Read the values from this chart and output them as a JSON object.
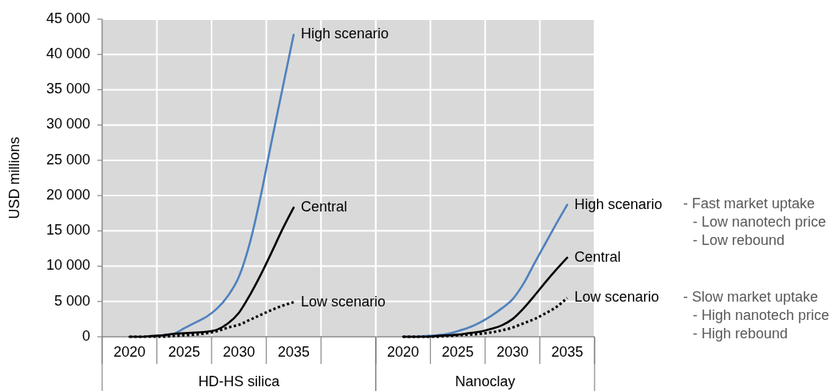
{
  "chart_data": [
    {
      "type": "line",
      "xlabel": "HD-HS silica",
      "ylabel": "USD millions",
      "grid": true,
      "x": [
        2020,
        2021,
        2022,
        2023,
        2024,
        2025,
        2026,
        2027,
        2028,
        2029,
        2030,
        2031,
        2032,
        2033,
        2034,
        2035
      ],
      "xlim": [
        2017.5,
        2042.5
      ],
      "xticks": [
        {
          "value": 2017.5,
          "label": null
        },
        2020,
        {
          "value": 2022.5,
          "label": null
        },
        2025,
        {
          "value": 2027.5,
          "label": null
        },
        2030,
        {
          "value": 2032.5,
          "label": null
        },
        2035,
        {
          "value": 2037.5,
          "label": null
        },
        {
          "value": 2042.5,
          "label": null
        }
      ],
      "ylim": [
        0,
        45000
      ],
      "yticks": [
        0,
        {
          "value": 5000,
          "label": "5 000"
        },
        {
          "value": 10000,
          "label": "10 000"
        },
        {
          "value": 15000,
          "label": "15 000"
        },
        {
          "value": 20000,
          "label": "20 000"
        },
        {
          "value": 25000,
          "label": "25 000"
        },
        {
          "value": 30000,
          "label": "30 000"
        },
        {
          "value": 35000,
          "label": "35 000"
        },
        {
          "value": 40000,
          "label": "40 000"
        },
        {
          "value": 45000,
          "label": "45 000"
        }
      ],
      "series": [
        {
          "name": "High scenario",
          "color": "#4f81bd",
          "values": [
            null,
            null,
            100,
            200,
            400,
            1200,
            2000,
            2800,
            4000,
            5800,
            8500,
            13300,
            20000,
            27800,
            35300,
            42800
          ]
        },
        {
          "name": "Central",
          "color": "#000000",
          "values": [
            0,
            0,
            100,
            200,
            400,
            500,
            600,
            700,
            1000,
            1900,
            3400,
            5900,
            8800,
            12000,
            15300,
            18300
          ]
        },
        {
          "name": "Low scenario",
          "color": "#000000",
          "line_style": "dotted",
          "values": [
            0,
            0,
            0,
            0,
            100,
            200,
            300,
            500,
            800,
            1300,
            1700,
            2400,
            3100,
            3800,
            4400,
            4900
          ]
        }
      ]
    },
    {
      "type": "line",
      "xlabel": "Nanoclay",
      "grid": true,
      "tick_labels": "x",
      "x": [
        2020,
        2021,
        2022,
        2023,
        2024,
        2025,
        2026,
        2027,
        2028,
        2029,
        2030,
        2031,
        2032,
        2033,
        2034,
        2035
      ],
      "xlim": [
        2017.5,
        2037.5
      ],
      "xticks": [
        {
          "value": 2017.5,
          "label": null
        },
        2020,
        {
          "value": 2022.5,
          "label": null
        },
        2025,
        {
          "value": 2027.5,
          "label": null
        },
        2030,
        {
          "value": 2032.5,
          "label": null
        },
        2035,
        {
          "value": 2037.5,
          "label": null
        }
      ],
      "ylim": [
        0,
        45000
      ],
      "yticks": [
        0,
        5000,
        10000,
        15000,
        20000,
        25000,
        30000,
        35000,
        40000,
        45000
      ],
      "series": [
        {
          "name": "High scenario",
          "color": "#4f81bd",
          "values": [
            0,
            0,
            100,
            200,
            400,
            800,
            1300,
            2000,
            2900,
            4000,
            5300,
            7500,
            10400,
            13200,
            16000,
            18700
          ]
        },
        {
          "name": "Central",
          "color": "#000000",
          "values": [
            0,
            0,
            0,
            100,
            200,
            300,
            500,
            700,
            1100,
            1600,
            2500,
            4000,
            5800,
            7700,
            9500,
            11200
          ]
        },
        {
          "name": "Low scenario",
          "color": "#000000",
          "line_style": "dotted",
          "values": [
            0,
            0,
            0,
            0,
            100,
            200,
            300,
            400,
            600,
            900,
            1300,
            1900,
            2500,
            3300,
            4200,
            5500
          ]
        }
      ],
      "annotations": [
        "- Fast market uptake\n- Low nanotech price\n- Low rebound",
        "- Slow market uptake\n- High nanotech price\n- High rebound"
      ]
    }
  ]
}
